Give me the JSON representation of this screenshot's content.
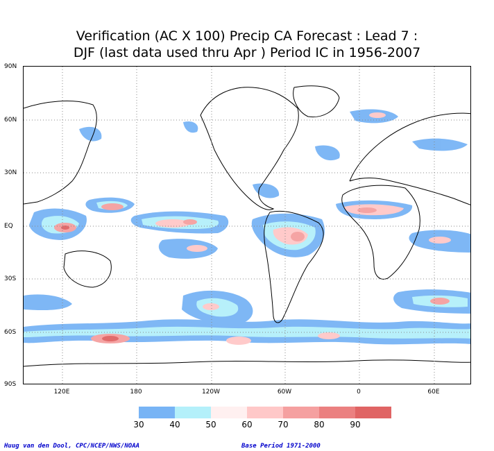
{
  "title_line1": "Verification (AC X 100) Precip CA Forecast : Lead 7 :",
  "title_line2": "DJF (last data used thru Apr ) Period IC in 1956-2007",
  "lat_labels": [
    "90N",
    "60N",
    "30N",
    "EQ",
    "30S",
    "60S",
    "90S"
  ],
  "lon_labels": [
    "120E",
    "180",
    "120W",
    "60W",
    "0",
    "60E"
  ],
  "colorbar": {
    "levels": [
      "30",
      "40",
      "50",
      "60",
      "70",
      "80",
      "90"
    ],
    "colors": [
      "#78b4f5",
      "#b4f0fa",
      "#fff0f0",
      "#ffc8c8",
      "#f5a0a0",
      "#eb8080",
      "#e06464"
    ]
  },
  "credit_left": "Huug van den Dool, CPC/NCEP/NWS/NOAA",
  "credit_right": "Base Period 1971-2000"
}
